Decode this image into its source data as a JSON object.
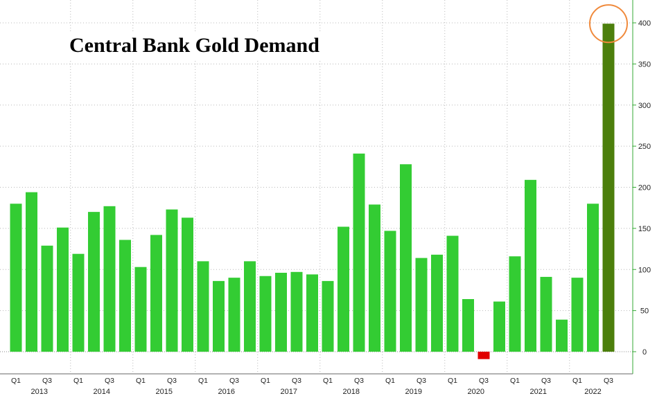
{
  "colors": {
    "bar": "#33CC33",
    "latest_bar": "#4C7F0C",
    "negative_bar": "#E00000",
    "highlight_circle": "#F08A3C",
    "grid": "#B8B8B8",
    "axis": "#33AA33"
  },
  "chart_data": {
    "type": "bar",
    "title": "Central Bank Gold Demand",
    "xlabel": "",
    "ylabel": "",
    "ylim": [
      -10,
      420
    ],
    "yticks": [
      0,
      50,
      100,
      150,
      200,
      250,
      300,
      350,
      400
    ],
    "y_axis_side": "right",
    "grid": true,
    "legend": "none",
    "categories": [
      "2013 Q1",
      "2013 Q2",
      "2013 Q3",
      "2013 Q4",
      "2014 Q1",
      "2014 Q2",
      "2014 Q3",
      "2014 Q4",
      "2015 Q1",
      "2015 Q2",
      "2015 Q3",
      "2015 Q4",
      "2016 Q1",
      "2016 Q2",
      "2016 Q3",
      "2016 Q4",
      "2017 Q1",
      "2017 Q2",
      "2017 Q3",
      "2017 Q4",
      "2018 Q1",
      "2018 Q2",
      "2018 Q3",
      "2018 Q4",
      "2019 Q1",
      "2019 Q2",
      "2019 Q3",
      "2019 Q4",
      "2020 Q1",
      "2020 Q2",
      "2020 Q3",
      "2020 Q4",
      "2021 Q1",
      "2021 Q2",
      "2021 Q3",
      "2021 Q4",
      "2022 Q1",
      "2022 Q2",
      "2022 Q3"
    ],
    "values": [
      180,
      194,
      129,
      151,
      119,
      170,
      177,
      136,
      103,
      142,
      173,
      163,
      110,
      86,
      90,
      110,
      92,
      96,
      97,
      94,
      86,
      152,
      241,
      179,
      147,
      228,
      114,
      118,
      141,
      64,
      -9,
      61,
      116,
      209,
      91,
      39,
      90,
      180,
      399
    ],
    "quarter_labels": [
      "Q1",
      "Q3"
    ],
    "years": [
      "2013",
      "2014",
      "2015",
      "2016",
      "2017",
      "2018",
      "2019",
      "2020",
      "2021",
      "2022"
    ],
    "highlight": "2022 Q3"
  }
}
